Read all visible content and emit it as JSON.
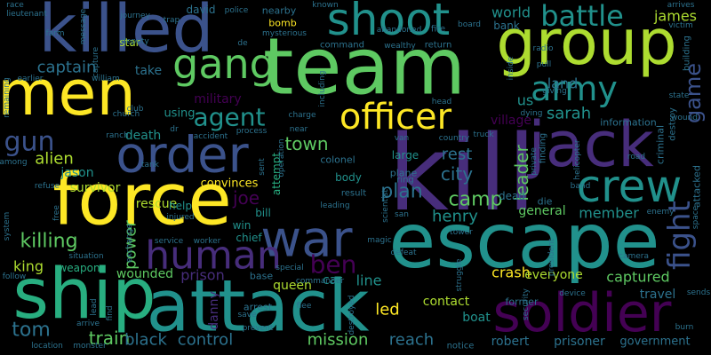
{
  "background": "#000000",
  "palette": {
    "purple": "#440154",
    "violet": "#472d7b",
    "indigo": "#3b528b",
    "steel": "#2c728e",
    "teal": "#21918c",
    "sea": "#28ae80",
    "green": "#5ec962",
    "lime": "#addc30",
    "yellow": "#fde725"
  },
  "words": [
    {
      "text": "kill",
      "w": 100,
      "c": "violet"
    },
    {
      "text": "team",
      "w": 88,
      "c": "green"
    },
    {
      "text": "escape",
      "w": 80,
      "c": "teal"
    },
    {
      "text": "attack",
      "w": 78,
      "c": "teal"
    },
    {
      "text": "ship",
      "w": 74,
      "c": "sea"
    },
    {
      "text": "force",
      "w": 74,
      "c": "yellow"
    },
    {
      "text": "killed",
      "w": 70,
      "c": "indigo"
    },
    {
      "text": "men",
      "w": 70,
      "c": "yellow"
    },
    {
      "text": "group",
      "w": 70,
      "c": "lime"
    },
    {
      "text": "jack",
      "w": 68,
      "c": "violet"
    },
    {
      "text": "soldier",
      "w": 58,
      "c": "purple"
    },
    {
      "text": "order",
      "w": 56,
      "c": "indigo"
    },
    {
      "text": "war",
      "w": 54,
      "c": "indigo"
    },
    {
      "text": "crew",
      "w": 52,
      "c": "teal"
    },
    {
      "text": "shoot",
      "w": 50,
      "c": "teal"
    },
    {
      "text": "gang",
      "w": 48,
      "c": "green"
    },
    {
      "text": "human",
      "w": 44,
      "c": "violet"
    },
    {
      "text": "officer",
      "w": 42,
      "c": "yellow"
    },
    {
      "text": "army",
      "w": 38,
      "c": "teal"
    },
    {
      "text": "battle",
      "w": 34,
      "c": "teal"
    },
    {
      "text": "fight",
      "w": 34,
      "c": "indigo"
    },
    {
      "text": "ben",
      "w": 30,
      "c": "purple"
    },
    {
      "text": "agent",
      "w": 30,
      "c": "teal"
    },
    {
      "text": "gun",
      "w": 30,
      "c": "indigo"
    },
    {
      "text": "game",
      "w": 24,
      "c": "indigo"
    },
    {
      "text": "camp",
      "w": 22,
      "c": "green"
    },
    {
      "text": "killing",
      "w": 22,
      "c": "green"
    },
    {
      "text": "train",
      "w": 22,
      "c": "green"
    },
    {
      "text": "tom",
      "w": 22,
      "c": "steel"
    },
    {
      "text": "plan",
      "w": 22,
      "c": "steel"
    },
    {
      "text": "leader",
      "w": 20,
      "c": "green"
    },
    {
      "text": "town",
      "w": 20,
      "c": "green"
    },
    {
      "text": "joe",
      "w": 20,
      "c": "purple"
    },
    {
      "text": "control",
      "w": 20,
      "c": "steel"
    },
    {
      "text": "black",
      "w": 20,
      "c": "steel"
    },
    {
      "text": "mission",
      "w": 18,
      "c": "green"
    },
    {
      "text": "reach",
      "w": 18,
      "c": "steel"
    },
    {
      "text": "led",
      "w": 18,
      "c": "yellow"
    },
    {
      "text": "power",
      "w": 18,
      "c": "green"
    },
    {
      "text": "city",
      "w": 20,
      "c": "steel"
    },
    {
      "text": "sarah",
      "w": 18,
      "c": "teal"
    },
    {
      "text": "captain",
      "w": 18,
      "c": "steel"
    },
    {
      "text": "alien",
      "w": 18,
      "c": "lime"
    },
    {
      "text": "henry",
      "w": 18,
      "c": "teal"
    },
    {
      "text": "rest",
      "w": 18,
      "c": "steel"
    },
    {
      "text": "james",
      "w": 16,
      "c": "lime"
    },
    {
      "text": "world",
      "w": 16,
      "c": "teal"
    },
    {
      "text": "prison",
      "w": 16,
      "c": "violet"
    },
    {
      "text": "queen",
      "w": 14,
      "c": "lime"
    },
    {
      "text": "king",
      "w": 16,
      "c": "lime"
    },
    {
      "text": "crash",
      "w": 16,
      "c": "yellow"
    },
    {
      "text": "captured",
      "w": 16,
      "c": "green"
    },
    {
      "text": "member",
      "w": 16,
      "c": "teal"
    },
    {
      "text": "travel",
      "w": 14,
      "c": "steel"
    },
    {
      "text": "robert",
      "w": 14,
      "c": "steel"
    },
    {
      "text": "prisoner",
      "w": 14,
      "c": "steel"
    },
    {
      "text": "government",
      "w": 13,
      "c": "steel"
    },
    {
      "text": "everyone",
      "w": 14,
      "c": "lime"
    },
    {
      "text": "contact",
      "w": 14,
      "c": "lime"
    },
    {
      "text": "car",
      "w": 14,
      "c": "teal"
    },
    {
      "text": "line",
      "w": 16,
      "c": "teal"
    },
    {
      "text": "boat",
      "w": 14,
      "c": "teal"
    },
    {
      "text": "danny",
      "w": 14,
      "c": "violet"
    },
    {
      "text": "wounded",
      "w": 14,
      "c": "green"
    },
    {
      "text": "rescue",
      "w": 14,
      "c": "lime"
    },
    {
      "text": "convinces",
      "w": 13,
      "c": "yellow"
    },
    {
      "text": "survivor",
      "w": 14,
      "c": "lime"
    },
    {
      "text": "jason",
      "w": 14,
      "c": "teal"
    },
    {
      "text": "death",
      "w": 14,
      "c": "teal"
    },
    {
      "text": "military",
      "w": 14,
      "c": "purple"
    },
    {
      "text": "using",
      "w": 13,
      "c": "teal"
    },
    {
      "text": "village",
      "w": 14,
      "c": "purple"
    },
    {
      "text": "us",
      "w": 16,
      "c": "teal"
    },
    {
      "text": "land",
      "w": 16,
      "c": "steel"
    },
    {
      "text": "general",
      "w": 14,
      "c": "green"
    },
    {
      "text": "body",
      "w": 12,
      "c": "teal"
    },
    {
      "text": "large",
      "w": 12,
      "c": "teal"
    },
    {
      "text": "help",
      "w": 12,
      "c": "teal"
    },
    {
      "text": "bill",
      "w": 12,
      "c": "teal"
    },
    {
      "text": "win",
      "w": 12,
      "c": "teal"
    },
    {
      "text": "chief",
      "w": 12,
      "c": "teal"
    },
    {
      "text": "weapon",
      "w": 12,
      "c": "sea"
    },
    {
      "text": "attempt",
      "w": 12,
      "c": "sea"
    },
    {
      "text": "take",
      "w": 14,
      "c": "steel"
    },
    {
      "text": "star",
      "w": 12,
      "c": "lime"
    },
    {
      "text": "david",
      "w": 12,
      "c": "steel"
    },
    {
      "text": "bomb",
      "w": 11,
      "c": "yellow"
    },
    {
      "text": "nearby",
      "w": 11,
      "c": "steel"
    },
    {
      "text": "bank",
      "w": 12,
      "c": "steel"
    },
    {
      "text": "colonel",
      "w": 11,
      "c": "steel"
    },
    {
      "text": "information",
      "w": 11,
      "c": "steel"
    },
    {
      "text": "arrest",
      "w": 11,
      "c": "steel"
    },
    {
      "text": "base",
      "w": 11,
      "c": "steel"
    },
    {
      "text": "dead",
      "w": 12,
      "c": "steel"
    },
    {
      "text": "die",
      "w": 11,
      "c": "steel"
    },
    {
      "text": "result",
      "w": 10,
      "c": "steel"
    },
    {
      "text": "plane",
      "w": 11,
      "c": "steel"
    },
    {
      "text": "ring",
      "w": 10,
      "c": "steel"
    },
    {
      "text": "former",
      "w": 11,
      "c": "steel"
    },
    {
      "text": "notice",
      "w": 10,
      "c": "steel"
    },
    {
      "text": "criminal",
      "w": 11,
      "c": "steel"
    },
    {
      "text": "destroy",
      "w": 10,
      "c": "steel"
    },
    {
      "text": "attacked",
      "w": 11,
      "c": "steel"
    },
    {
      "text": "building",
      "w": 10,
      "c": "steel"
    },
    {
      "text": "finding",
      "w": 10,
      "c": "steel"
    },
    {
      "text": "return",
      "w": 10,
      "c": "steel"
    },
    {
      "text": "command",
      "w": 10,
      "c": "steel"
    },
    {
      "text": "fire",
      "w": 10,
      "c": "steel"
    },
    {
      "text": "radio",
      "w": 9,
      "c": "steel"
    },
    {
      "text": "pull",
      "w": 9,
      "c": "steel"
    },
    {
      "text": "giving",
      "w": 9,
      "c": "steel"
    },
    {
      "text": "board",
      "w": 9,
      "c": "steel"
    },
    {
      "text": "mysterious",
      "w": 9,
      "c": "steel"
    },
    {
      "text": "police",
      "w": 9,
      "c": "steel"
    },
    {
      "text": "journey",
      "w": 9,
      "c": "steel"
    },
    {
      "text": "message",
      "w": 9,
      "c": "steel"
    },
    {
      "text": "known",
      "w": 9,
      "c": "steel"
    },
    {
      "text": "abandoned",
      "w": 9,
      "c": "steel"
    },
    {
      "text": "wealthy",
      "w": 9,
      "c": "steel"
    },
    {
      "text": "lieutenant",
      "w": 9,
      "c": "steel"
    },
    {
      "text": "race",
      "w": 9,
      "c": "steel"
    },
    {
      "text": "farm",
      "w": 9,
      "c": "steel"
    },
    {
      "text": "trap",
      "w": 9,
      "c": "steel"
    },
    {
      "text": "deputy",
      "w": 9,
      "c": "steel"
    },
    {
      "text": "william",
      "w": 9,
      "c": "steel"
    },
    {
      "text": "earlier",
      "w": 9,
      "c": "steel"
    },
    {
      "text": "remaining",
      "w": 9,
      "c": "steel"
    },
    {
      "text": "church",
      "w": 9,
      "c": "steel"
    },
    {
      "text": "ranch",
      "w": 9,
      "c": "steel"
    },
    {
      "text": "tank",
      "w": 9,
      "c": "steel"
    },
    {
      "text": "among",
      "w": 9,
      "c": "steel"
    },
    {
      "text": "refuse",
      "w": 9,
      "c": "steel"
    },
    {
      "text": "free",
      "w": 9,
      "c": "steel"
    },
    {
      "text": "system",
      "w": 9,
      "c": "steel"
    },
    {
      "text": "exchange",
      "w": 9,
      "c": "steel"
    },
    {
      "text": "injured",
      "w": 9,
      "c": "steel"
    },
    {
      "text": "service",
      "w": 9,
      "c": "steel"
    },
    {
      "text": "worker",
      "w": 9,
      "c": "steel"
    },
    {
      "text": "situation",
      "w": 9,
      "c": "steel"
    },
    {
      "text": "follow",
      "w": 9,
      "c": "steel"
    },
    {
      "text": "special",
      "w": 9,
      "c": "steel"
    },
    {
      "text": "commander",
      "w": 9,
      "c": "steel"
    },
    {
      "text": "save",
      "w": 9,
      "c": "steel"
    },
    {
      "text": "prevent",
      "w": 9,
      "c": "steel"
    },
    {
      "text": "flee",
      "w": 9,
      "c": "steel"
    },
    {
      "text": "defeat",
      "w": 9,
      "c": "steel"
    },
    {
      "text": "magic",
      "w": 9,
      "c": "steel"
    },
    {
      "text": "san",
      "w": 9,
      "c": "steel"
    },
    {
      "text": "struggle",
      "w": 9,
      "c": "steel"
    },
    {
      "text": "security",
      "w": 9,
      "c": "steel"
    },
    {
      "text": "president",
      "w": 9,
      "c": "steel"
    },
    {
      "text": "device",
      "w": 9,
      "c": "steel"
    },
    {
      "text": "camera",
      "w": 9,
      "c": "steel"
    },
    {
      "text": "enemy",
      "w": 9,
      "c": "steel"
    },
    {
      "text": "space",
      "w": 9,
      "c": "steel"
    },
    {
      "text": "sends",
      "w": 9,
      "c": "steel"
    },
    {
      "text": "burn",
      "w": 9,
      "c": "steel"
    },
    {
      "text": "band",
      "w": 9,
      "c": "steel"
    },
    {
      "text": "road",
      "w": 9,
      "c": "steel"
    },
    {
      "text": "arrives",
      "w": 9,
      "c": "steel"
    },
    {
      "text": "wound",
      "w": 9,
      "c": "steel"
    },
    {
      "text": "state",
      "w": 9,
      "c": "steel"
    },
    {
      "text": "truck",
      "w": 9,
      "c": "steel"
    },
    {
      "text": "country",
      "w": 9,
      "c": "steel"
    },
    {
      "text": "van",
      "w": 9,
      "c": "steel"
    },
    {
      "text": "charge",
      "w": 9,
      "c": "steel"
    },
    {
      "text": "process",
      "w": 9,
      "c": "steel"
    },
    {
      "text": "accident",
      "w": 9,
      "c": "steel"
    },
    {
      "text": "dr",
      "w": 9,
      "c": "steel"
    },
    {
      "text": "near",
      "w": 9,
      "c": "steel"
    },
    {
      "text": "sent",
      "w": 9,
      "c": "steel"
    },
    {
      "text": "location",
      "w": 9,
      "c": "steel"
    },
    {
      "text": "monster",
      "w": 9,
      "c": "steel"
    },
    {
      "text": "arrive",
      "w": 9,
      "c": "steel"
    },
    {
      "text": "lead",
      "w": 9,
      "c": "steel"
    },
    {
      "text": "find",
      "w": 9,
      "c": "steel"
    },
    {
      "text": "including",
      "w": 9,
      "c": "steel"
    },
    {
      "text": "head",
      "w": 9,
      "c": "steel"
    },
    {
      "text": "inside",
      "w": 9,
      "c": "steel"
    },
    {
      "text": "dying",
      "w": 9,
      "c": "steel"
    },
    {
      "text": "private",
      "w": 9,
      "c": "steel"
    },
    {
      "text": "helicopter",
      "w": 9,
      "c": "steel"
    },
    {
      "text": "capture",
      "w": 9,
      "c": "steel"
    },
    {
      "text": "de",
      "w": 9,
      "c": "steel"
    },
    {
      "text": "club",
      "w": 9,
      "c": "steel"
    },
    {
      "text": "leading",
      "w": 9,
      "c": "steel"
    },
    {
      "text": "scientist",
      "w": 9,
      "c": "steel"
    },
    {
      "text": "tower",
      "w": 9,
      "c": "steel"
    },
    {
      "text": "destroyed",
      "w": 9,
      "c": "steel"
    },
    {
      "text": "operation",
      "w": 9,
      "c": "steel"
    },
    {
      "text": "victim",
      "w": 9,
      "c": "steel"
    }
  ]
}
